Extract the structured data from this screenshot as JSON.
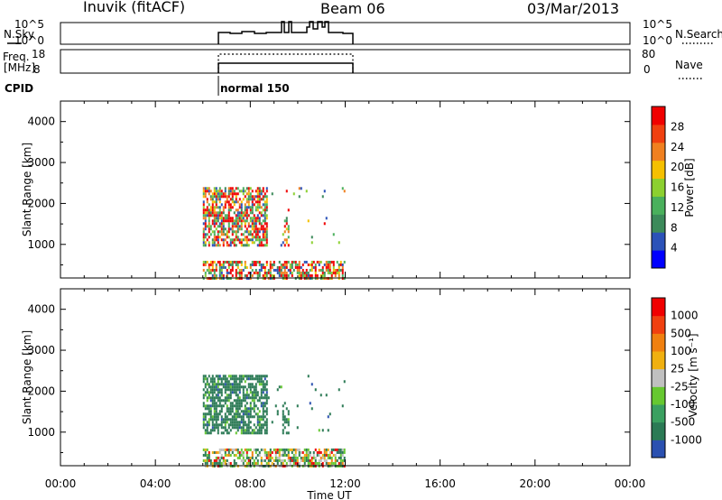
{
  "header": {
    "station": "Inuvik (fitACF)",
    "beam": "Beam 06",
    "date": "03/Mar/2013"
  },
  "top_panels": {
    "nsky_label": "N.Sky",
    "nsearch_label": "N.Search",
    "nsky_ticks": [
      "10^5",
      "10^0"
    ],
    "nsearch_ticks": [
      "10^5",
      "10^0"
    ],
    "freq_label": "Freq.",
    "freq_unit": "[MHz]",
    "freq_ticks": [
      "18",
      "8"
    ],
    "nave_label": "Nave",
    "nave_ticks": [
      "80",
      "0"
    ],
    "cpid_label": "CPID",
    "cpid_value": "normal 150"
  },
  "colors": {
    "power_scale": [
      "#0000ff",
      "#2b52b8",
      "#3c8a5a",
      "#4ab05c",
      "#8cd030",
      "#f5c000",
      "#f08020",
      "#f04010",
      "#f00000"
    ],
    "velocity_scale": [
      "#2a50b0",
      "#2b7a55",
      "#3aa060",
      "#66c830",
      "#c0c0c0",
      "#f0b010",
      "#f08010",
      "#f04010",
      "#f00000"
    ],
    "data_fill": "#3c8a5a"
  },
  "chart_data": [
    {
      "type": "heatmap",
      "panel": "power",
      "ylabel": "Slant Range [km]",
      "yticks": [
        "1000",
        "2000",
        "3000",
        "4000"
      ],
      "ylim": [
        180,
        4500
      ],
      "colorbar_label": "Power [dB]",
      "colorbar_ticks": [
        "4",
        "8",
        "12",
        "16",
        "20",
        "24",
        "28"
      ],
      "data_extent_hours": [
        6.0,
        12.0
      ],
      "echo_regions_km": [
        [
          200,
          600
        ],
        [
          1000,
          2400
        ]
      ]
    },
    {
      "type": "heatmap",
      "panel": "velocity",
      "ylabel": "Slant Range [km]",
      "yticks": [
        "1000",
        "2000",
        "3000",
        "4000"
      ],
      "ylim": [
        180,
        4500
      ],
      "colorbar_label": "Velocity [m s⁻¹]",
      "colorbar_ticks": [
        "1000",
        "500",
        "100",
        "25",
        "-25",
        "-100",
        "-500",
        "-1000"
      ],
      "data_extent_hours": [
        6.0,
        12.0
      ],
      "echo_regions_km": [
        [
          200,
          600
        ],
        [
          1000,
          2400
        ]
      ]
    }
  ],
  "xaxis": {
    "ticks": [
      "00:00",
      "04:00",
      "08:00",
      "12:00",
      "16:00",
      "20:00",
      "00:00"
    ],
    "label": "Time UT"
  }
}
